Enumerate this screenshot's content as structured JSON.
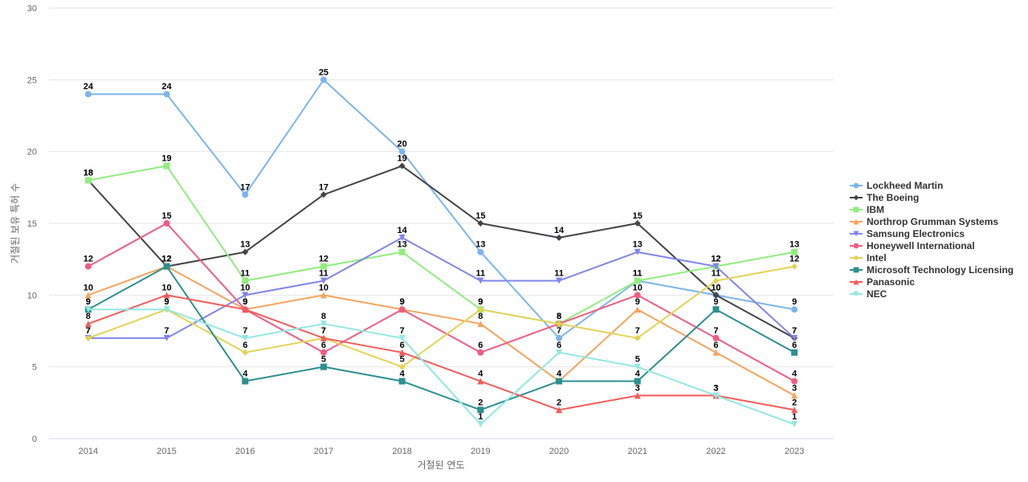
{
  "chart_data": {
    "type": "line",
    "title": "",
    "xlabel": "거절된 연도",
    "ylabel": "거절된 보유 특허 수",
    "ylim": [
      0,
      30
    ],
    "yticks": [
      0,
      5,
      10,
      15,
      20,
      25,
      30
    ],
    "categories": [
      "2014",
      "2015",
      "2016",
      "2017",
      "2018",
      "2019",
      "2020",
      "2021",
      "2022",
      "2023"
    ],
    "grid": true,
    "legend_position": "right",
    "series": [
      {
        "name": "Lockheed Martin",
        "color": "#7cb5ec",
        "marker": "circle",
        "values": [
          24,
          24,
          17,
          25,
          20,
          13,
          7,
          11,
          10,
          9
        ]
      },
      {
        "name": "The Boeing",
        "color": "#434348",
        "marker": "diamond",
        "values": [
          18,
          12,
          13,
          17,
          19,
          15,
          14,
          15,
          10,
          7
        ]
      },
      {
        "name": "IBM",
        "color": "#90ed7d",
        "marker": "square",
        "values": [
          18,
          19,
          11,
          12,
          13,
          9,
          8,
          11,
          12,
          13
        ]
      },
      {
        "name": "Northrop Grumman Systems",
        "color": "#f7a35c",
        "marker": "triangle",
        "values": [
          10,
          12,
          9,
          10,
          9,
          8,
          4,
          9,
          6,
          3
        ]
      },
      {
        "name": "Samsung Electronics",
        "color": "#8085e9",
        "marker": "triangle-down",
        "values": [
          7,
          7,
          10,
          11,
          14,
          11,
          11,
          13,
          12,
          7
        ]
      },
      {
        "name": "Honeywell International",
        "color": "#f15c80",
        "marker": "circle",
        "values": [
          12,
          15,
          9,
          6,
          9,
          6,
          8,
          10,
          7,
          4
        ]
      },
      {
        "name": "Intel",
        "color": "#e4d354",
        "marker": "diamond",
        "values": [
          7,
          9,
          6,
          7,
          5,
          9,
          8,
          7,
          11,
          12
        ]
      },
      {
        "name": "Microsoft Technology Licensing",
        "color": "#2b908f",
        "marker": "square",
        "values": [
          9,
          12,
          4,
          5,
          4,
          2,
          4,
          4,
          9,
          6
        ]
      },
      {
        "name": "Panasonic",
        "color": "#f45b5b",
        "marker": "triangle",
        "values": [
          8,
          10,
          9,
          7,
          6,
          4,
          2,
          3,
          3,
          2
        ]
      },
      {
        "name": "NEC",
        "color": "#91e8e1",
        "marker": "triangle-down",
        "values": [
          9,
          9,
          7,
          8,
          7,
          1,
          6,
          5,
          3,
          1
        ]
      }
    ]
  }
}
